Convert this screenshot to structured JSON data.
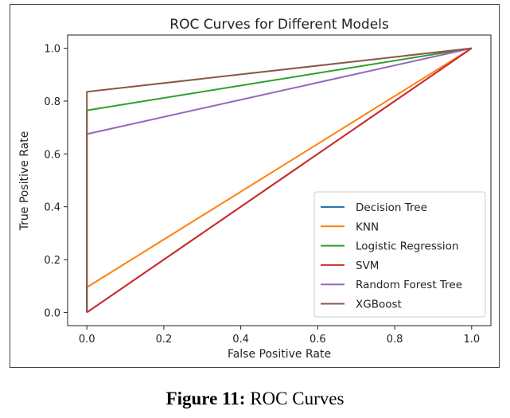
{
  "caption": {
    "prefix": "Figure 11:",
    "text": "ROC Curves"
  },
  "chart_data": {
    "type": "line",
    "title": "ROC Curves for Different Models",
    "xlabel": "False Positive Rate",
    "ylabel": "True Positive Rate",
    "xlim": [
      -0.05,
      1.05
    ],
    "ylim": [
      -0.05,
      1.05
    ],
    "xticks": [
      "0.0",
      "0.2",
      "0.4",
      "0.6",
      "0.8",
      "1.0"
    ],
    "yticks": [
      "0.0",
      "0.2",
      "0.4",
      "0.6",
      "0.8",
      "1.0"
    ],
    "tick_values": [
      0.0,
      0.2,
      0.4,
      0.6,
      0.8,
      1.0
    ],
    "grid": false,
    "legend_position": "lower-right",
    "series": [
      {
        "name": "Decision Tree",
        "color": "#1f77b4",
        "x": [
          0,
          0,
          1
        ],
        "y": [
          0,
          0,
          1
        ]
      },
      {
        "name": "KNN",
        "color": "#ff7f0e",
        "x": [
          0,
          0,
          1
        ],
        "y": [
          0,
          0.095,
          1
        ]
      },
      {
        "name": "Logistic Regression",
        "color": "#2ca02c",
        "x": [
          0,
          0,
          1
        ],
        "y": [
          0,
          0.765,
          1
        ]
      },
      {
        "name": "SVM",
        "color": "#d62728",
        "x": [
          0,
          0,
          1
        ],
        "y": [
          0,
          0,
          1
        ]
      },
      {
        "name": "Random Forest Tree",
        "color": "#9467bd",
        "x": [
          0,
          0,
          1
        ],
        "y": [
          0,
          0.675,
          1
        ]
      },
      {
        "name": "XGBoost",
        "color": "#8c564b",
        "x": [
          0,
          0,
          1
        ],
        "y": [
          0,
          0.835,
          1
        ]
      }
    ]
  }
}
